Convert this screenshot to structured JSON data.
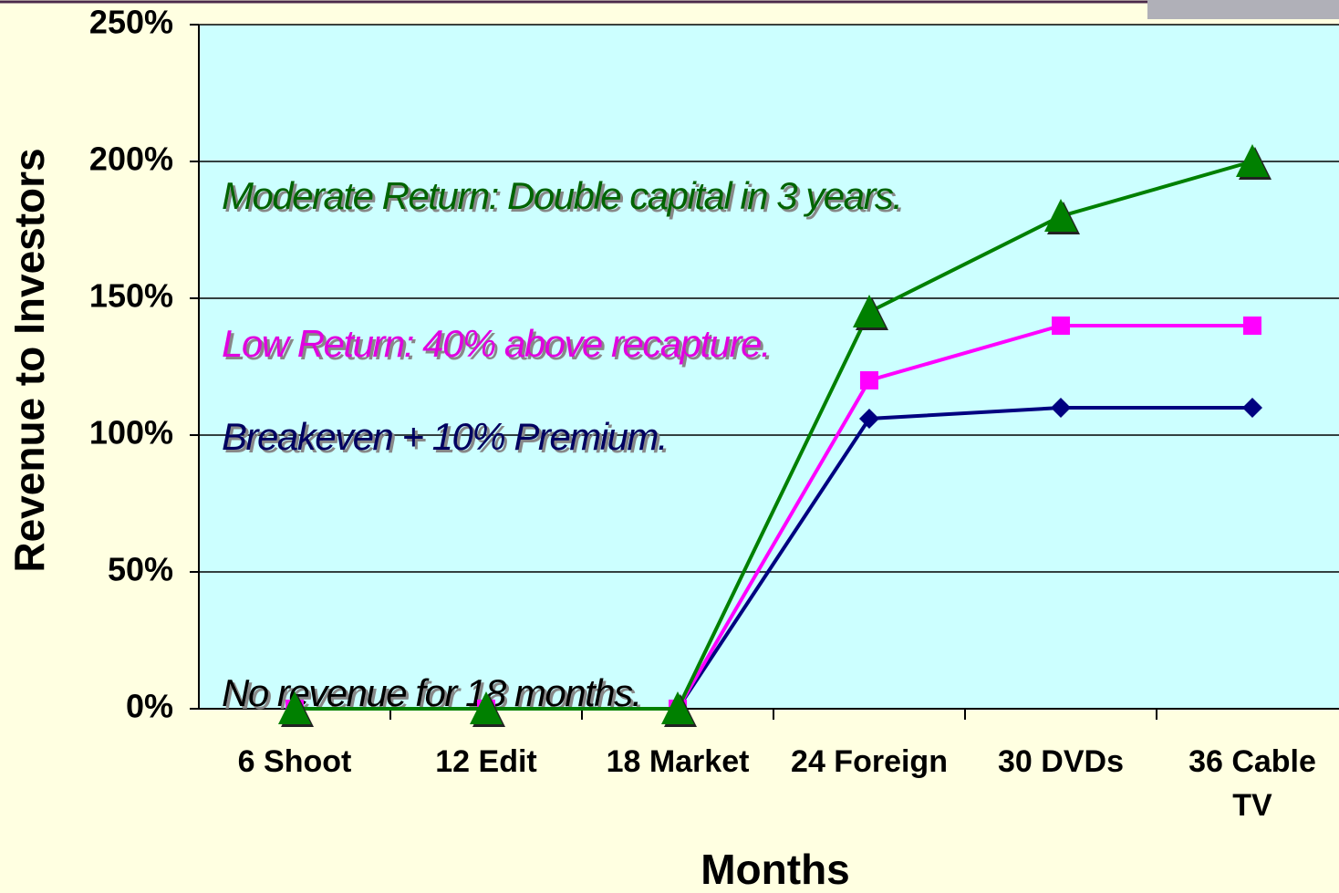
{
  "chart_data": {
    "type": "line",
    "y_label": "Revenue to Investors",
    "x_label": "Months",
    "categories": [
      "6 Shoot",
      "12 Edit",
      "18 Market",
      "24 Foreign",
      "30 DVDs",
      "36 Cable TV"
    ],
    "series": [
      {
        "color": "#000080",
        "marker": "diamond",
        "values": [
          0,
          0,
          0,
          106,
          110,
          110
        ]
      },
      {
        "color": "#ff00ff",
        "marker": "square",
        "values": [
          0,
          0,
          0,
          120,
          140,
          140
        ]
      },
      {
        "color": "#008000",
        "marker": "triangle",
        "values": [
          0,
          0,
          0,
          145,
          180,
          200
        ]
      }
    ],
    "annotations": [
      {
        "text": "Moderate Return:  Double capital in 3 years.",
        "color": "#006400"
      },
      {
        "text": "Low Return:  40% above recapture.",
        "color": "#e000e0"
      },
      {
        "text": "Breakeven + 10% Premium.",
        "color": "#000060"
      },
      {
        "text": "No revenue for 18 months.",
        "color": "#000000"
      }
    ],
    "ylim": [
      0,
      250
    ],
    "yticks": [
      {
        "value": 0,
        "label": "0%"
      },
      {
        "value": 50,
        "label": "50%"
      },
      {
        "value": 100,
        "label": "100%"
      },
      {
        "value": 150,
        "label": "150%"
      },
      {
        "value": 200,
        "label": "200%"
      },
      {
        "value": 250,
        "label": "250%"
      }
    ],
    "grid": true
  }
}
